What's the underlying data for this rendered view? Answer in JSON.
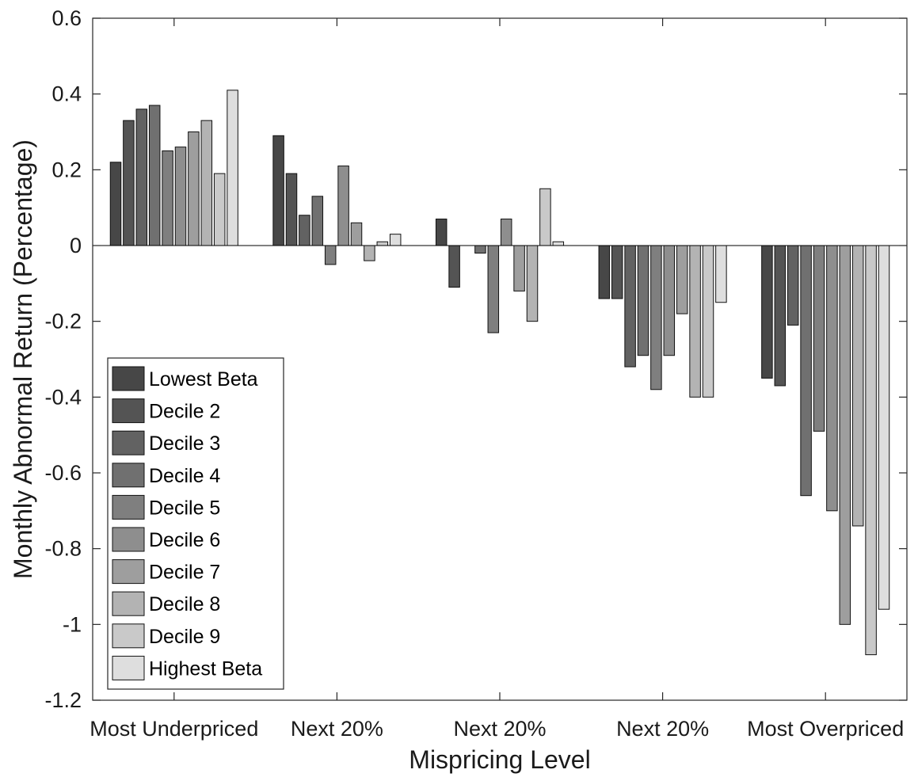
{
  "chart_data": {
    "type": "bar",
    "title": "",
    "xlabel": "Mispricing Level",
    "ylabel": "Monthly Abnormal Return (Percentage)",
    "ylim": [
      -1.2,
      0.6
    ],
    "yticks": [
      0.6,
      0.4,
      0.2,
      0,
      -0.2,
      -0.4,
      -0.6,
      -0.8,
      -1,
      -1.2
    ],
    "ytick_labels": [
      "0.6",
      "0.4",
      "0.2",
      "0",
      "-0.2",
      "-0.4",
      "-0.6",
      "-0.8",
      "-1",
      "-1.2"
    ],
    "grid": false,
    "legend_position": "bottom-left",
    "categories": [
      "Most Underpriced",
      "Next 20%",
      "Next 20%",
      "Next 20%",
      "Most Overpriced"
    ],
    "series": [
      {
        "name": "Lowest Beta",
        "color": "#474747",
        "values": [
          0.22,
          0.29,
          0.07,
          -0.14,
          -0.35
        ]
      },
      {
        "name": "Decile 2",
        "color": "#545454",
        "values": [
          0.33,
          0.19,
          -0.11,
          -0.14,
          -0.37
        ]
      },
      {
        "name": "Decile 3",
        "color": "#626262",
        "values": [
          0.36,
          0.08,
          0.0,
          -0.32,
          -0.21
        ]
      },
      {
        "name": "Decile 4",
        "color": "#707070",
        "values": [
          0.37,
          0.13,
          -0.02,
          -0.29,
          -0.66
        ]
      },
      {
        "name": "Decile 5",
        "color": "#7f7f7f",
        "values": [
          0.25,
          -0.05,
          -0.23,
          -0.38,
          -0.49
        ]
      },
      {
        "name": "Decile 6",
        "color": "#8e8e8e",
        "values": [
          0.26,
          0.21,
          0.07,
          -0.29,
          -0.7
        ]
      },
      {
        "name": "Decile 7",
        "color": "#9e9e9e",
        "values": [
          0.3,
          0.06,
          -0.12,
          -0.18,
          -1.0
        ]
      },
      {
        "name": "Decile 8",
        "color": "#b3b3b3",
        "values": [
          0.33,
          -0.04,
          -0.2,
          -0.4,
          -0.74
        ]
      },
      {
        "name": "Decile 9",
        "color": "#c9c9c9",
        "values": [
          0.19,
          0.01,
          0.15,
          -0.4,
          -1.08
        ]
      },
      {
        "name": "Highest Beta",
        "color": "#dedede",
        "values": [
          0.41,
          0.03,
          0.01,
          -0.15,
          -0.96
        ]
      }
    ]
  }
}
